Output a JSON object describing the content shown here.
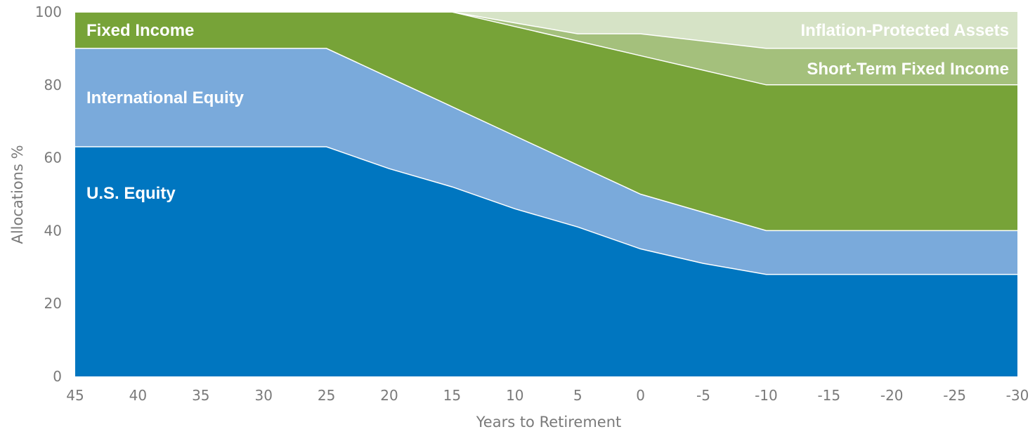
{
  "chart_data": {
    "type": "area",
    "stacked": true,
    "title": "",
    "xlabel": "Years to Retirement",
    "ylabel": "Allocations %",
    "x": [
      45,
      40,
      35,
      30,
      25,
      20,
      15,
      10,
      5,
      0,
      -5,
      -10,
      -15,
      -20,
      -25,
      -30
    ],
    "x_ticks": [
      "45",
      "40",
      "35",
      "30",
      "25",
      "20",
      "15",
      "10",
      "5",
      "0",
      "-5",
      "-10",
      "-15",
      "-20",
      "-25",
      "-30"
    ],
    "xlim": [
      45,
      -30
    ],
    "ylim": [
      0,
      100
    ],
    "y_ticks": [
      "0",
      "20",
      "40",
      "60",
      "80",
      "100"
    ],
    "grid": false,
    "legend": "inline labels",
    "series": [
      {
        "name": "U.S. Equity",
        "color": "#0076c0",
        "values": [
          63,
          63,
          63,
          63,
          63,
          57,
          52,
          46,
          41,
          35,
          31,
          28,
          28,
          28,
          28,
          28
        ]
      },
      {
        "name": "International Equity",
        "color": "#7aaadb",
        "values": [
          27,
          27,
          27,
          27,
          27,
          25,
          22,
          20,
          17,
          15,
          14,
          12,
          12,
          12,
          12,
          12
        ]
      },
      {
        "name": "Fixed Income",
        "color": "#77a338",
        "values": [
          10,
          10,
          10,
          10,
          10,
          18,
          26,
          30,
          34,
          38,
          39,
          40,
          40,
          40,
          40,
          40
        ]
      },
      {
        "name": "Short-Term Fixed Income",
        "color": "#a4c07c",
        "values": [
          0,
          0,
          0,
          0,
          0,
          0,
          0,
          1,
          2,
          6,
          8,
          10,
          10,
          10,
          10,
          10
        ]
      },
      {
        "name": "Inflation-Protected Assets",
        "color": "#d6e3c6",
        "values": [
          0,
          0,
          0,
          0,
          0,
          0,
          0,
          3,
          6,
          6,
          8,
          10,
          10,
          10,
          10,
          10
        ]
      }
    ]
  }
}
